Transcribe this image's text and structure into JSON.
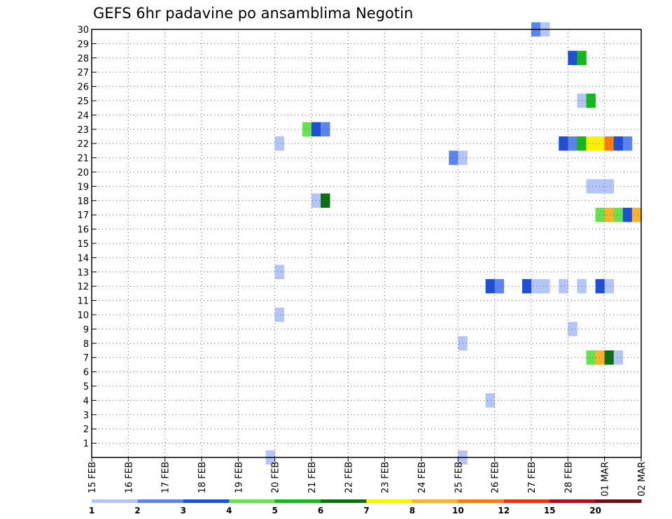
{
  "chart_data": {
    "type": "heatmap",
    "title": "GEFS 6hr padavine po ansamblima Negotin",
    "xlabel": "",
    "ylabel": "",
    "x_tick_labels": [
      "15 FEB",
      "16 FEB",
      "17 FEB",
      "18 FEB",
      "19 FEB",
      "20 FEB",
      "21 FEB",
      "22 FEB",
      "23 FEB",
      "24 FEB",
      "25 FEB",
      "26 FEB",
      "27 FEB",
      "28 FEB",
      "01 MAR",
      "02 MAR"
    ],
    "y_tick_labels": [
      "1",
      "2",
      "3",
      "4",
      "5",
      "6",
      "7",
      "8",
      "9",
      "10",
      "11",
      "12",
      "13",
      "14",
      "15",
      "16",
      "17",
      "18",
      "19",
      "20",
      "21",
      "22",
      "23",
      "24",
      "25",
      "26",
      "27",
      "28",
      "29",
      "30"
    ],
    "time_step_hours": 6,
    "grid": true,
    "colorbar": {
      "labels": [
        "1",
        "2",
        "3",
        "4",
        "5",
        "6",
        "7",
        "8",
        "10",
        "12",
        "15",
        "20"
      ],
      "colors": [
        "#b3c6f7",
        "#5b85ec",
        "#1e4fd8",
        "#66e24f",
        "#13b918",
        "#0b7012",
        "#fff200",
        "#ffb229",
        "#ff7b0b",
        "#e5340f",
        "#b30d12",
        "#6b0e10"
      ]
    },
    "cells": [
      {
        "member": 30,
        "time": "27 FEB 00Z",
        "level": 2
      },
      {
        "member": 30,
        "time": "27 FEB 06Z",
        "level": 1
      },
      {
        "member": 28,
        "time": "28 FEB 00Z",
        "level": 3
      },
      {
        "member": 28,
        "time": "28 FEB 06Z",
        "level": 5
      },
      {
        "member": 25,
        "time": "28 FEB 06Z",
        "level": 1
      },
      {
        "member": 25,
        "time": "28 FEB 12Z",
        "level": 5
      },
      {
        "member": 23,
        "time": "20 FEB 18Z",
        "level": 4
      },
      {
        "member": 23,
        "time": "21 FEB 00Z",
        "level": 3
      },
      {
        "member": 23,
        "time": "21 FEB 06Z",
        "level": 2
      },
      {
        "member": 22,
        "time": "20 FEB 00Z",
        "level": 1
      },
      {
        "member": 22,
        "time": "27 FEB 18Z",
        "level": 3
      },
      {
        "member": 22,
        "time": "28 FEB 00Z",
        "level": 2
      },
      {
        "member": 22,
        "time": "28 FEB 06Z",
        "level": 5
      },
      {
        "member": 22,
        "time": "28 FEB 12Z",
        "level": 7
      },
      {
        "member": 22,
        "time": "28 FEB 18Z",
        "level": 7
      },
      {
        "member": 22,
        "time": "01 MAR 00Z",
        "level": 9
      },
      {
        "member": 22,
        "time": "01 MAR 06Z",
        "level": 3
      },
      {
        "member": 22,
        "time": "01 MAR 12Z",
        "level": 2
      },
      {
        "member": 21,
        "time": "24 FEB 18Z",
        "level": 2
      },
      {
        "member": 21,
        "time": "25 FEB 00Z",
        "level": 1
      },
      {
        "member": 19,
        "time": "28 FEB 12Z",
        "level": 1
      },
      {
        "member": 19,
        "time": "28 FEB 18Z",
        "level": 1
      },
      {
        "member": 19,
        "time": "01 MAR 00Z",
        "level": 1
      },
      {
        "member": 18,
        "time": "21 FEB 00Z",
        "level": 1
      },
      {
        "member": 18,
        "time": "21 FEB 06Z",
        "level": 6
      },
      {
        "member": 17,
        "time": "28 FEB 18Z",
        "level": 4
      },
      {
        "member": 17,
        "time": "01 MAR 00Z",
        "level": 8
      },
      {
        "member": 17,
        "time": "01 MAR 06Z",
        "level": 4
      },
      {
        "member": 17,
        "time": "01 MAR 12Z",
        "level": 3
      },
      {
        "member": 17,
        "time": "01 MAR 18Z",
        "level": 8
      },
      {
        "member": 13,
        "time": "20 FEB 00Z",
        "level": 1
      },
      {
        "member": 12,
        "time": "25 FEB 18Z",
        "level": 3
      },
      {
        "member": 12,
        "time": "26 FEB 00Z",
        "level": 2
      },
      {
        "member": 12,
        "time": "26 FEB 18Z",
        "level": 3
      },
      {
        "member": 12,
        "time": "27 FEB 00Z",
        "level": 1
      },
      {
        "member": 12,
        "time": "27 FEB 06Z",
        "level": 1
      },
      {
        "member": 12,
        "time": "27 FEB 18Z",
        "level": 1
      },
      {
        "member": 12,
        "time": "28 FEB 06Z",
        "level": 1
      },
      {
        "member": 12,
        "time": "28 FEB 18Z",
        "level": 3
      },
      {
        "member": 12,
        "time": "01 MAR 00Z",
        "level": 1
      },
      {
        "member": 10,
        "time": "20 FEB 00Z",
        "level": 1
      },
      {
        "member": 9,
        "time": "27 FEB 24Z",
        "level": 1
      },
      {
        "member": 8,
        "time": "25 FEB 00Z",
        "level": 1
      },
      {
        "member": 7,
        "time": "28 FEB 12Z",
        "level": 4
      },
      {
        "member": 7,
        "time": "28 FEB 18Z",
        "level": 8
      },
      {
        "member": 7,
        "time": "01 MAR 00Z",
        "level": 6
      },
      {
        "member": 7,
        "time": "01 MAR 06Z",
        "level": 1
      },
      {
        "member": 4,
        "time": "25 FEB 18Z",
        "level": 1
      },
      {
        "member": 0,
        "time": "19 FEB 18Z",
        "level": 1
      },
      {
        "member": 0,
        "time": "25 FEB 00Z",
        "level": 1
      }
    ]
  }
}
